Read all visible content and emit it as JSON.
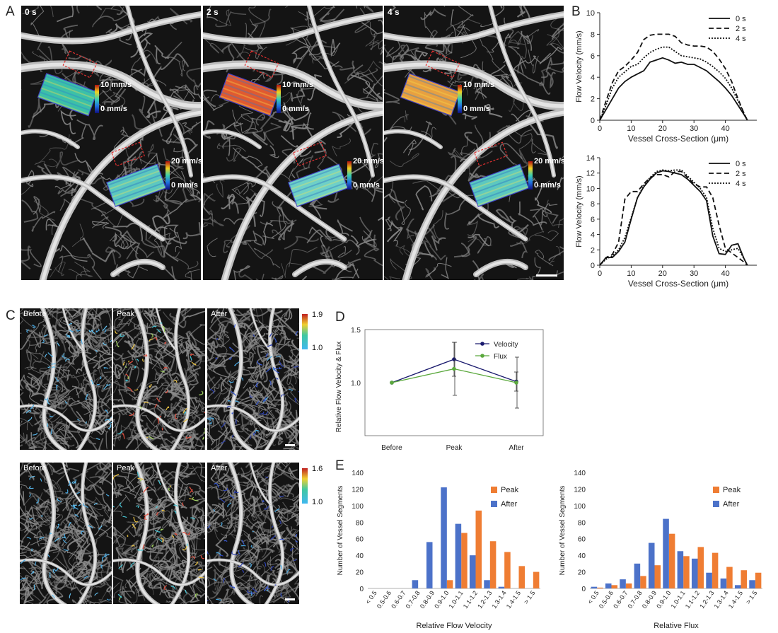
{
  "panel_letters": {
    "a": "A",
    "b": "B",
    "c": "C",
    "d": "D",
    "e": "E"
  },
  "panel_a": {
    "frames": [
      {
        "label": "0s_label",
        "text": "0 s",
        "roi1_color": "#3cc0a8",
        "roi2_color": "#5cc8c0"
      },
      {
        "label": "2s_label",
        "text": "2 s",
        "roi1_color": "#e05a30",
        "roi2_color": "#6ed0c8"
      },
      {
        "label": "4s_label",
        "text": "4 s",
        "roi1_color": "#e8a040",
        "roi2_color": "#5cc8c0"
      }
    ],
    "colorbar1": {
      "max": "10 mm/s",
      "min": "0 mm/s"
    },
    "colorbar2": {
      "max": "20 mm/s",
      "min": "0 mm/s"
    }
  },
  "panel_c": {
    "row_labels": [
      "Before",
      "Peak",
      "After"
    ],
    "colorbar_top": {
      "max": "1.9",
      "min": "1.0"
    },
    "colorbar_bottom": {
      "max": "1.6",
      "min": "1.0"
    }
  },
  "chart_data": [
    {
      "id": "B-top",
      "type": "line",
      "xlabel": "Vessel Cross-Section (μm)",
      "ylabel": "Flow Velocity (mm/s)",
      "xlim": [
        0,
        50
      ],
      "ylim": [
        0,
        10
      ],
      "xticks": [
        0,
        10,
        20,
        30,
        40
      ],
      "yticks": [
        0,
        2,
        4,
        6,
        8,
        10
      ],
      "legend_position": "top-right",
      "series": [
        {
          "name": "0 s",
          "style": "solid",
          "x": [
            0,
            2,
            4,
            6,
            8,
            10,
            12,
            14,
            16,
            18,
            20,
            22,
            24,
            26,
            28,
            30,
            32,
            34,
            36,
            38,
            40,
            42,
            44,
            46,
            47
          ],
          "y": [
            0,
            1.0,
            2.0,
            3.0,
            3.6,
            4.0,
            4.3,
            4.6,
            5.4,
            5.6,
            5.8,
            5.6,
            5.3,
            5.4,
            5.2,
            5.2,
            4.9,
            4.6,
            4.1,
            3.6,
            3.0,
            2.3,
            1.4,
            0.5,
            0
          ]
        },
        {
          "name": "2 s",
          "style": "dashed",
          "x": [
            0,
            2,
            4,
            6,
            8,
            10,
            12,
            14,
            16,
            18,
            20,
            22,
            24,
            26,
            28,
            30,
            32,
            34,
            36,
            38,
            40,
            42,
            44,
            46,
            47
          ],
          "y": [
            0,
            1.8,
            3.5,
            4.6,
            5.0,
            5.6,
            6.3,
            7.5,
            7.9,
            8.0,
            8.0,
            8.0,
            7.8,
            7.2,
            7.0,
            6.9,
            6.9,
            6.8,
            6.4,
            5.7,
            4.8,
            3.6,
            2.0,
            0.6,
            0
          ]
        },
        {
          "name": "4 s",
          "style": "dotted",
          "x": [
            0,
            2,
            4,
            6,
            8,
            10,
            12,
            14,
            16,
            18,
            20,
            22,
            24,
            26,
            28,
            30,
            32,
            34,
            36,
            38,
            40,
            42,
            44,
            46,
            47
          ],
          "y": [
            0,
            1.4,
            3.0,
            4.0,
            4.5,
            5.0,
            5.2,
            5.8,
            6.3,
            6.6,
            6.8,
            6.8,
            6.4,
            6.0,
            5.9,
            5.8,
            5.7,
            5.4,
            5.0,
            4.5,
            3.9,
            3.0,
            1.8,
            0.6,
            0
          ]
        }
      ]
    },
    {
      "id": "B-bottom",
      "type": "line",
      "xlabel": "Vessel Cross-Section (μm)",
      "ylabel": "Flow Velocity (mm/s)",
      "xlim": [
        0,
        50
      ],
      "ylim": [
        0,
        14
      ],
      "xticks": [
        0,
        10,
        20,
        30,
        40
      ],
      "yticks": [
        0,
        2,
        4,
        6,
        8,
        10,
        12,
        14
      ],
      "legend_position": "top-right",
      "series": [
        {
          "name": "0 s",
          "style": "solid",
          "x": [
            0,
            2,
            4,
            6,
            8,
            10,
            12,
            14,
            16,
            18,
            20,
            22,
            24,
            26,
            28,
            30,
            32,
            34,
            36,
            38,
            40,
            42,
            44,
            46,
            47
          ],
          "y": [
            0,
            1.0,
            1.0,
            1.8,
            3.0,
            6.0,
            8.8,
            10.2,
            11.2,
            12.0,
            12.3,
            12.2,
            12.0,
            11.8,
            11.2,
            10.4,
            9.6,
            8.4,
            3.8,
            1.5,
            1.4,
            2.6,
            2.8,
            0.8,
            0
          ]
        },
        {
          "name": "2 s",
          "style": "dashed",
          "x": [
            0,
            2,
            4,
            6,
            8,
            10,
            12,
            14,
            16,
            18,
            20,
            22,
            24,
            26,
            28,
            30,
            32,
            34,
            36,
            38,
            40,
            42,
            44,
            46,
            47
          ],
          "y": [
            0,
            1.0,
            1.4,
            3.0,
            8.6,
            9.6,
            9.6,
            10.6,
            11.4,
            11.8,
            11.8,
            11.5,
            12.2,
            12.2,
            11.4,
            10.6,
            10.2,
            10.2,
            8.8,
            5.2,
            2.2,
            1.6,
            1.0,
            0.4,
            0
          ]
        },
        {
          "name": "4 s",
          "style": "dotted",
          "x": [
            0,
            2,
            4,
            6,
            8,
            10,
            12,
            14,
            16,
            18,
            20,
            22,
            24,
            26,
            28,
            30,
            32,
            34,
            36,
            38,
            40,
            42,
            44,
            46,
            47
          ],
          "y": [
            0,
            0.8,
            1.2,
            2.0,
            3.6,
            6.2,
            8.8,
            10.4,
            11.4,
            12.2,
            12.4,
            12.3,
            12.4,
            12.4,
            11.6,
            10.8,
            10.0,
            8.8,
            4.8,
            2.2,
            1.8,
            2.0,
            2.2,
            0.8,
            0
          ]
        }
      ]
    },
    {
      "id": "D",
      "type": "line",
      "ylabel": "Relative Flow Velocity & Flux",
      "categories": [
        "Before",
        "Peak",
        "After"
      ],
      "ylim": [
        0.5,
        1.5
      ],
      "yticks": [
        1.0,
        1.5
      ],
      "legend_position": "top-right",
      "series": [
        {
          "name": "Velocity",
          "color": "#1a1a6e",
          "values": [
            1.0,
            1.22,
            1.01
          ],
          "error": [
            0,
            0.16,
            0.09
          ]
        },
        {
          "name": "Flux",
          "color": "#5aa83c",
          "values": [
            1.0,
            1.13,
            1.0
          ],
          "error": [
            0,
            0.25,
            0.24
          ]
        }
      ]
    },
    {
      "id": "E-velocity",
      "type": "bar",
      "xlabel": "Relative Flow Velocity",
      "ylabel": "Number of Vessel Segments",
      "categories": [
        "< 0.5",
        "0.5-0.6",
        "0.6-0.7",
        "0.7-0.8",
        "0.8-0.9",
        "0.9-1.0",
        "1.0-1.1",
        "1.1-1.2",
        "1.2-1.3",
        "1.3-1.4",
        "1.4-1.5",
        "> 1.5"
      ],
      "ylim": [
        0,
        140
      ],
      "yticks": [
        0,
        20,
        40,
        60,
        80,
        100,
        120,
        140
      ],
      "legend_position": "top-right",
      "series": [
        {
          "name": "Peak",
          "color": "#ef7d33",
          "values": [
            0,
            0,
            0,
            0,
            0,
            10,
            67,
            94,
            57,
            44,
            27,
            20
          ]
        },
        {
          "name": "After",
          "color": "#4c72c9",
          "values": [
            0,
            0,
            0,
            10,
            56,
            122,
            78,
            40,
            10,
            2,
            0,
            0
          ]
        }
      ]
    },
    {
      "id": "E-flux",
      "type": "bar",
      "xlabel": "Relative Flux",
      "ylabel": "Number of Vessel Segments",
      "categories": [
        "< 0.5",
        "0.5-0.6",
        "0.6-0.7",
        "0.7-0.8",
        "0.8-0.9",
        "0.9-1.0",
        "1.0-1.1",
        "1.1-1.2",
        "1.2-1.3",
        "1.3-1.4",
        "1.4-1.5",
        "> 1.5"
      ],
      "ylim": [
        0,
        140
      ],
      "yticks": [
        0,
        20,
        40,
        60,
        80,
        100,
        120,
        140
      ],
      "legend_position": "top-right",
      "series": [
        {
          "name": "Peak",
          "color": "#ef7d33",
          "values": [
            1,
            4,
            6,
            15,
            28,
            66,
            39,
            50,
            43,
            26,
            22,
            19
          ]
        },
        {
          "name": "After",
          "color": "#4c72c9",
          "values": [
            2,
            6,
            11,
            30,
            55,
            84,
            45,
            36,
            19,
            12,
            4,
            10
          ]
        }
      ]
    }
  ]
}
